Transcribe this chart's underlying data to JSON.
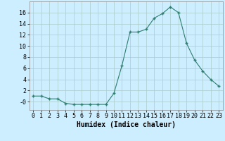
{
  "x": [
    0,
    1,
    2,
    3,
    4,
    5,
    6,
    7,
    8,
    9,
    10,
    11,
    12,
    13,
    14,
    15,
    16,
    17,
    18,
    19,
    20,
    21,
    22,
    23
  ],
  "y": [
    1,
    1,
    0.5,
    0.5,
    -0.3,
    -0.5,
    -0.5,
    -0.5,
    -0.5,
    -0.5,
    1.5,
    6.5,
    12.5,
    12.5,
    13,
    15,
    15.8,
    17,
    16,
    10.5,
    7.5,
    5.5,
    4,
    2.8
  ],
  "line_color": "#2e7d6e",
  "marker_color": "#2e7d6e",
  "bg_color": "#cceeff",
  "grid_color": "#aacccc",
  "xlabel": "Humidex (Indice chaleur)",
  "xlim": [
    -0.5,
    23.5
  ],
  "ylim": [
    -1.5,
    18
  ],
  "yticks": [
    0,
    2,
    4,
    6,
    8,
    10,
    12,
    14,
    16
  ],
  "ytick_labels": [
    "-0",
    "2",
    "4",
    "6",
    "8",
    "10",
    "12",
    "14",
    "16"
  ],
  "xticks": [
    0,
    1,
    2,
    3,
    4,
    5,
    6,
    7,
    8,
    9,
    10,
    11,
    12,
    13,
    14,
    15,
    16,
    17,
    18,
    19,
    20,
    21,
    22,
    23
  ],
  "xlabel_fontsize": 7,
  "tick_fontsize": 6
}
